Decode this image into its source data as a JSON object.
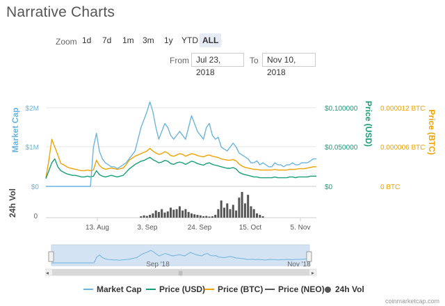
{
  "title": "Narrative Charts",
  "zoom": {
    "label": "Zoom",
    "buttons": [
      "1d",
      "7d",
      "1m",
      "3m",
      "1y",
      "YTD",
      "ALL"
    ],
    "active": "ALL"
  },
  "range": {
    "from_label": "From",
    "from_value": "Jul 23, 2018",
    "to_label": "To",
    "to_value": "Nov 10, 2018"
  },
  "colors": {
    "market_cap": "#6cb4e0",
    "price_usd": "#169e78",
    "price_btc": "#f2a200",
    "price_neo": "#555555",
    "vol": "#555555",
    "navigator_fill": "#d4e3f4"
  },
  "chart_data": {
    "type": "line",
    "x_tick_labels": [
      "13. Aug",
      "3. Sep",
      "24. Sep",
      "15. Oct",
      "5. Nov"
    ],
    "x_range": [
      "Jul 23, 2018",
      "Nov 10, 2018"
    ],
    "left_axis": {
      "label": "Market Cap",
      "ticks": [
        "$2M",
        "$1M",
        "$0"
      ]
    },
    "right_axis_usd": {
      "label": "Price (USD)",
      "ticks": [
        "$0.100000",
        "$0.050000",
        "$0"
      ]
    },
    "right_axis_btc": {
      "label": "Price (BTC)",
      "ticks": [
        "0.000012 BTC",
        "0.000006 BTC",
        "0 BTC"
      ]
    },
    "volume_axis": {
      "label": "24h Vol",
      "ticks": [
        "0"
      ]
    },
    "grid": true,
    "series": [
      {
        "name": "Market Cap",
        "axis": "Market Cap",
        "color": "#6cb4e0",
        "values": [
          0.0,
          0.0,
          0.0,
          0.0,
          0.0,
          0.0,
          0.0,
          0.0,
          0.0,
          0.0,
          0.0,
          0.0,
          0.0,
          0.0,
          0.0,
          0.0,
          1.0,
          1.35,
          0.9,
          0.7,
          0.6,
          0.55,
          0.5,
          0.5,
          0.45,
          0.5,
          0.55,
          0.6,
          0.7,
          0.8,
          0.9,
          1.2,
          1.5,
          1.7,
          1.9,
          2.15,
          1.9,
          1.5,
          1.2,
          1.4,
          1.6,
          1.5,
          1.3,
          1.2,
          1.3,
          1.4,
          1.3,
          1.2,
          1.5,
          1.8,
          1.6,
          1.4,
          1.3,
          1.2,
          1.5,
          1.6,
          1.3,
          1.2,
          1.25,
          1.0,
          0.95,
          0.9,
          1.0,
          1.1,
          1.0,
          0.85,
          0.8,
          0.75,
          0.7,
          0.6,
          0.6,
          0.65,
          0.55,
          0.6,
          0.55,
          0.5,
          0.5,
          0.6,
          0.55,
          0.55,
          0.5,
          0.55,
          0.55,
          0.6,
          0.55,
          0.55,
          0.6,
          0.6,
          0.6,
          0.65,
          0.7,
          0.7
        ]
      },
      {
        "name": "Price (USD)",
        "axis": "Price (USD)",
        "color": "#169e78",
        "values": [
          0.01,
          0.02,
          0.03,
          0.035,
          0.025,
          0.02,
          0.018,
          0.016,
          0.015,
          0.014,
          0.014,
          0.013,
          0.012,
          0.012,
          0.013,
          0.012,
          0.013,
          0.02,
          0.015,
          0.013,
          0.012,
          0.013,
          0.014,
          0.013,
          0.012,
          0.013,
          0.014,
          0.018,
          0.022,
          0.025,
          0.028,
          0.03,
          0.032,
          0.033,
          0.035,
          0.037,
          0.034,
          0.032,
          0.03,
          0.031,
          0.033,
          0.032,
          0.029,
          0.028,
          0.03,
          0.031,
          0.03,
          0.028,
          0.03,
          0.032,
          0.031,
          0.029,
          0.028,
          0.027,
          0.029,
          0.03,
          0.028,
          0.027,
          0.026,
          0.025,
          0.024,
          0.023,
          0.023,
          0.024,
          0.022,
          0.018,
          0.016,
          0.015,
          0.014,
          0.013,
          0.012,
          0.012,
          0.011,
          0.011,
          0.011,
          0.011,
          0.011,
          0.012,
          0.011,
          0.011,
          0.011,
          0.011,
          0.012,
          0.012,
          0.011,
          0.012,
          0.012,
          0.012,
          0.012,
          0.013,
          0.013,
          0.013
        ]
      },
      {
        "name": "Price (BTC)",
        "axis": "Price (BTC)",
        "color": "#f2a200",
        "values": [
          1.3e-06,
          4e-06,
          7.2e-06,
          6e-06,
          4.8e-06,
          3.5e-06,
          3.3e-06,
          3e-06,
          2.8e-06,
          2.7e-06,
          2.6e-06,
          2.5e-06,
          2.4e-06,
          2.4e-06,
          2.5e-06,
          2.4e-06,
          2.5e-06,
          4e-06,
          3.2e-06,
          2.8e-06,
          2.6e-06,
          2.7e-06,
          2.8e-06,
          2.7e-06,
          2.6e-06,
          2.7e-06,
          2.8e-06,
          3.3e-06,
          4e-06,
          4.3e-06,
          4.6e-06,
          4.8e-06,
          5e-06,
          5.2e-06,
          5.4e-06,
          5.8e-06,
          5.4e-06,
          5.1e-06,
          4.9e-06,
          5e-06,
          5.3e-06,
          5.1e-06,
          4.7e-06,
          4.6e-06,
          4.8e-06,
          5e-06,
          4.9e-06,
          4.6e-06,
          4.8e-06,
          5e-06,
          4.9e-06,
          4.7e-06,
          4.6e-06,
          4.5e-06,
          4.7e-06,
          4.8e-06,
          4.6e-06,
          4.5e-06,
          4.4e-06,
          4.2e-06,
          4.1e-06,
          4e-06,
          4e-06,
          4.1e-06,
          3.9e-06,
          3.4e-06,
          3.1e-06,
          2.9e-06,
          2.8e-06,
          2.7e-06,
          2.6e-06,
          2.6e-06,
          2.5e-06,
          2.5e-06,
          2.5e-06,
          2.5e-06,
          2.5e-06,
          2.6e-06,
          2.5e-06,
          2.5e-06,
          2.5e-06,
          2.5e-06,
          2.6e-06,
          2.6e-06,
          2.6e-06,
          2.7e-06,
          2.7e-06,
          2.7e-06,
          2.8e-06,
          2.9e-06,
          3e-06,
          3e-06
        ]
      }
    ],
    "volume": [
      0,
      0,
      0,
      0,
      0,
      0,
      0,
      0,
      0,
      0,
      0,
      0,
      0,
      0,
      0,
      0,
      0,
      0,
      0,
      0,
      0,
      0,
      0,
      0,
      0,
      0,
      0,
      0,
      0,
      0,
      0,
      0,
      0.05,
      0.08,
      0.06,
      0.1,
      0.15,
      0.25,
      0.2,
      0.3,
      0.18,
      0.22,
      0.35,
      0.28,
      0.3,
      0.4,
      0.25,
      0.3,
      0.2,
      0.15,
      0.12,
      0.1,
      0.08,
      0.05,
      0.06,
      0.04,
      0.05,
      0.1,
      0.3,
      0.6,
      0.35,
      0.5,
      0.3,
      0.45,
      0.25,
      0.7,
      0.9,
      0.5,
      0.8,
      0.4,
      0.3,
      0.15,
      0.1,
      0.05,
      0,
      0,
      0,
      0,
      0,
      0,
      0,
      0,
      0,
      0,
      0,
      0,
      0,
      0,
      0,
      0,
      0,
      0
    ],
    "navigator": {
      "label_left": "Sep '18",
      "label_right": "Nov '18"
    }
  },
  "legend": [
    {
      "label": "Market Cap",
      "type": "line",
      "color": "#6cb4e0"
    },
    {
      "label": "Price (USD)",
      "type": "line",
      "color": "#169e78"
    },
    {
      "label": "Price (BTC)",
      "type": "line",
      "color": "#f2a200"
    },
    {
      "label": "Price (NEO)",
      "type": "line",
      "color": "#555555"
    },
    {
      "label": "24h Vol",
      "type": "dot",
      "color": "#555555"
    }
  ],
  "credit": "coinmarketcap.com"
}
